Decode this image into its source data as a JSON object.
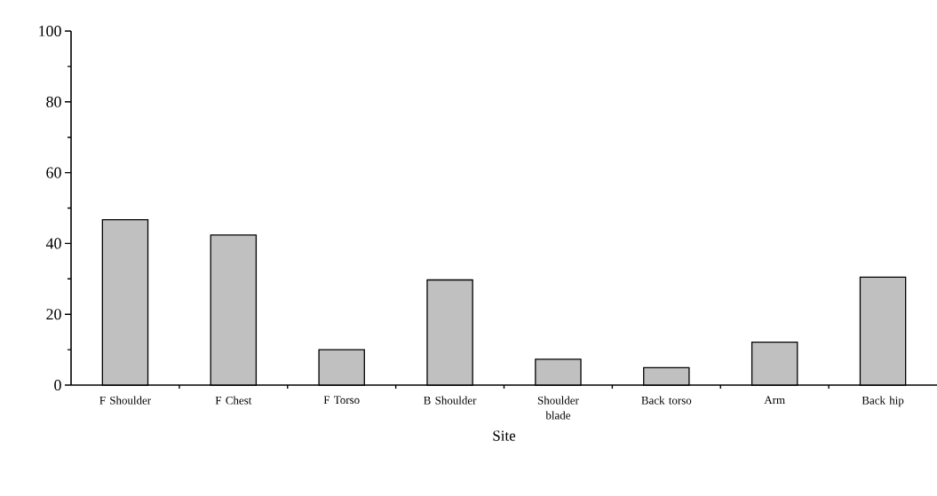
{
  "chart_data": {
    "type": "bar",
    "xlabel": "Site",
    "categories": [
      "F Shoulder",
      "F Chest",
      "F Torso",
      "B Shoulder",
      "Shoulder blade",
      "Back torso",
      "Arm",
      "Back hip"
    ],
    "values": [
      46.7,
      42.4,
      10.0,
      29.7,
      7.3,
      4.9,
      12.1,
      30.5
    ],
    "color": "#c0c0c0",
    "ylim": [
      0,
      100
    ],
    "yticks": [
      0,
      20,
      40,
      60,
      80,
      100
    ]
  }
}
